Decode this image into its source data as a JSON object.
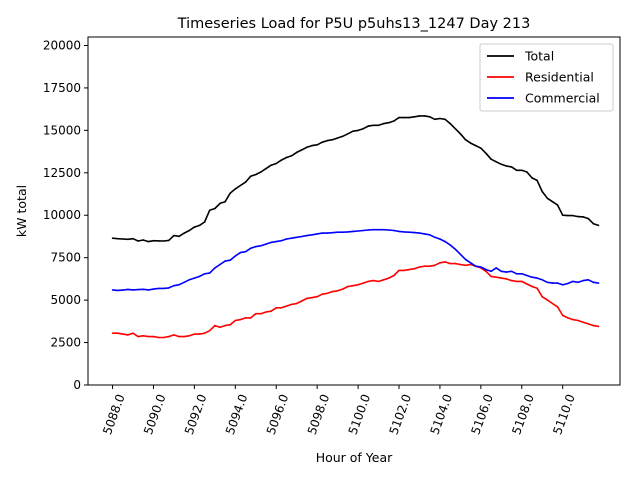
{
  "chart_data": {
    "type": "line",
    "title": "Timeseries Load for P5U p5uhs13_1247  Day 213",
    "xlabel": "Hour of Year",
    "ylabel": "kW total",
    "xlim": [
      5086.8,
      5112.8
    ],
    "ylim": [
      0,
      20500
    ],
    "x_ticks": [
      5088,
      5090,
      5092,
      5094,
      5096,
      5098,
      5100,
      5102,
      5104,
      5106,
      5108,
      5110
    ],
    "x_tick_labels": [
      "5088.0",
      "5090.0",
      "5092.0",
      "5094.0",
      "5096.0",
      "5098.0",
      "5100.0",
      "5102.0",
      "5104.0",
      "5106.0",
      "5108.0",
      "5110.0"
    ],
    "y_ticks": [
      0,
      2500,
      5000,
      7500,
      10000,
      12500,
      15000,
      17500,
      20000
    ],
    "y_tick_labels": [
      "0",
      "2500",
      "5000",
      "7500",
      "10000",
      "12500",
      "15000",
      "17500",
      "20000"
    ],
    "legend_position": "top-right",
    "x": [
      5088.0,
      5088.25,
      5088.5,
      5088.75,
      5089.0,
      5089.25,
      5089.5,
      5089.75,
      5090.0,
      5090.25,
      5090.5,
      5090.75,
      5091.0,
      5091.25,
      5091.5,
      5091.75,
      5092.0,
      5092.25,
      5092.5,
      5092.75,
      5093.0,
      5093.25,
      5093.5,
      5093.75,
      5094.0,
      5094.25,
      5094.5,
      5094.75,
      5095.0,
      5095.25,
      5095.5,
      5095.75,
      5096.0,
      5096.25,
      5096.5,
      5096.75,
      5097.0,
      5097.25,
      5097.5,
      5097.75,
      5098.0,
      5098.25,
      5098.5,
      5098.75,
      5099.0,
      5099.25,
      5099.5,
      5099.75,
      5100.0,
      5100.25,
      5100.5,
      5100.75,
      5101.0,
      5101.25,
      5101.5,
      5101.75,
      5102.0,
      5102.25,
      5102.5,
      5102.75,
      5103.0,
      5103.25,
      5103.5,
      5103.75,
      5104.0,
      5104.25,
      5104.5,
      5104.75,
      5105.0,
      5105.25,
      5105.5,
      5105.75,
      5106.0,
      5106.25,
      5106.5,
      5106.75,
      5107.0,
      5107.25,
      5107.5,
      5107.75,
      5108.0,
      5108.25,
      5108.5,
      5108.75,
      5109.0,
      5109.25,
      5109.5,
      5109.75,
      5110.0,
      5110.25,
      5110.5,
      5110.75,
      5111.0,
      5111.25,
      5111.5,
      5111.75
    ],
    "series": [
      {
        "name": "Total",
        "color": "#000000",
        "values": [
          8650,
          8620,
          8600,
          8580,
          8620,
          8480,
          8540,
          8450,
          8500,
          8490,
          8480,
          8520,
          8800,
          8760,
          8950,
          9100,
          9300,
          9400,
          9600,
          10300,
          10400,
          10700,
          10800,
          11300,
          11550,
          11750,
          11950,
          12300,
          12400,
          12550,
          12750,
          12950,
          13050,
          13250,
          13400,
          13500,
          13700,
          13850,
          14000,
          14100,
          14150,
          14300,
          14400,
          14450,
          14550,
          14650,
          14800,
          14950,
          15000,
          15100,
          15250,
          15300,
          15300,
          15400,
          15450,
          15550,
          15750,
          15750,
          15750,
          15800,
          15850,
          15850,
          15800,
          15650,
          15700,
          15650,
          15400,
          15100,
          14800,
          14450,
          14250,
          14100,
          13950,
          13650,
          13300,
          13150,
          13000,
          12900,
          12850,
          12650,
          12650,
          12550,
          12200,
          12050,
          11400,
          11000,
          10800,
          10600,
          10000,
          9980,
          9980,
          9920,
          9900,
          9800,
          9500,
          9400
        ]
      },
      {
        "name": "Residential",
        "color": "#ff0000",
        "values": [
          3050,
          3050,
          3000,
          2950,
          3050,
          2850,
          2900,
          2850,
          2850,
          2800,
          2800,
          2850,
          2950,
          2850,
          2850,
          2900,
          3000,
          3000,
          3050,
          3200,
          3500,
          3400,
          3500,
          3550,
          3800,
          3850,
          3950,
          3950,
          4200,
          4200,
          4300,
          4350,
          4550,
          4550,
          4650,
          4750,
          4800,
          4950,
          5100,
          5150,
          5200,
          5350,
          5400,
          5500,
          5550,
          5650,
          5800,
          5850,
          5900,
          6000,
          6100,
          6150,
          6100,
          6200,
          6300,
          6450,
          6750,
          6750,
          6800,
          6850,
          6950,
          7000,
          7000,
          7050,
          7200,
          7250,
          7150,
          7150,
          7100,
          7050,
          7100,
          7000,
          6900,
          6700,
          6400,
          6350,
          6300,
          6250,
          6150,
          6100,
          6100,
          5950,
          5800,
          5700,
          5200,
          5000,
          4800,
          4600,
          4100,
          3950,
          3850,
          3800,
          3700,
          3600,
          3500,
          3450
        ]
      },
      {
        "name": "Commercial",
        "color": "#0000ff",
        "values": [
          5600,
          5570,
          5590,
          5630,
          5600,
          5620,
          5640,
          5600,
          5650,
          5690,
          5690,
          5720,
          5850,
          5910,
          6050,
          6200,
          6300,
          6400,
          6550,
          6600,
          6900,
          7100,
          7300,
          7350,
          7600,
          7800,
          7850,
          8050,
          8150,
          8200,
          8300,
          8400,
          8450,
          8500,
          8600,
          8650,
          8700,
          8750,
          8800,
          8850,
          8900,
          8950,
          8950,
          8970,
          9000,
          9000,
          9020,
          9050,
          9070,
          9100,
          9130,
          9150,
          9150,
          9150,
          9130,
          9100,
          9050,
          9020,
          9000,
          8980,
          8950,
          8900,
          8850,
          8700,
          8600,
          8450,
          8250,
          8000,
          7700,
          7400,
          7200,
          7000,
          6950,
          6800,
          6700,
          6900,
          6700,
          6650,
          6700,
          6550,
          6550,
          6450,
          6350,
          6300,
          6200,
          6050,
          6000,
          6000,
          5900,
          5980,
          6100,
          6050,
          6150,
          6200,
          6050,
          6000
        ]
      }
    ]
  }
}
